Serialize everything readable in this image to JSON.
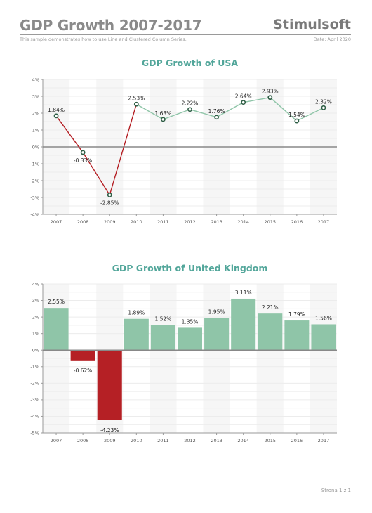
{
  "header": {
    "title": "GDP Growth 2007-2017",
    "brand": "Stimulsoft",
    "subtitle": "This sample demonstrates how to use Line and Clustered Column Series.",
    "date": "Date: April 2020"
  },
  "footer": {
    "page": "Strona 1 z 1"
  },
  "colors": {
    "positive": "#8fc5a8",
    "negative": "#b52025",
    "line_positive": "#8fc5a8",
    "marker_stroke": "#2e5e45",
    "title": "#52a69a"
  },
  "chart_data": [
    {
      "type": "line",
      "title": "GDP Growth of USA",
      "categories": [
        "2007",
        "2008",
        "2009",
        "2010",
        "2011",
        "2012",
        "2013",
        "2014",
        "2015",
        "2016",
        "2017"
      ],
      "values": [
        1.84,
        -0.33,
        -2.85,
        2.53,
        1.63,
        2.22,
        1.76,
        2.64,
        2.93,
        1.54,
        2.32
      ],
      "labels": [
        "1.84%",
        "-0.33%",
        "-2.85%",
        "2.53%",
        "1.63%",
        "2.22%",
        "1.76%",
        "2.64%",
        "2.93%",
        "1.54%",
        "2.32%"
      ],
      "ylim": [
        -4,
        4
      ],
      "yticks": [
        "4%",
        "3%",
        "2%",
        "1%",
        "0%",
        "-1%",
        "-2%",
        "-3%",
        "-4%"
      ],
      "grid": true,
      "legend": "none"
    },
    {
      "type": "bar",
      "title": "GDP Growth of United Kingdom",
      "categories": [
        "2007",
        "2008",
        "2009",
        "2010",
        "2011",
        "2012",
        "2013",
        "2014",
        "2015",
        "2016",
        "2017"
      ],
      "values": [
        2.55,
        -0.62,
        -4.23,
        1.89,
        1.52,
        1.35,
        1.95,
        3.11,
        2.21,
        1.79,
        1.56
      ],
      "labels": [
        "2.55%",
        "-0.62%",
        "-4.23%",
        "1.89%",
        "1.52%",
        "1.35%",
        "1.95%",
        "3.11%",
        "2.21%",
        "1.79%",
        "1.56%"
      ],
      "ylim": [
        -5,
        4
      ],
      "yticks": [
        "4%",
        "3%",
        "2%",
        "1%",
        "0%",
        "-1%",
        "-2%",
        "-3%",
        "-4%",
        "-5%"
      ],
      "grid": true,
      "legend": "none"
    }
  ]
}
